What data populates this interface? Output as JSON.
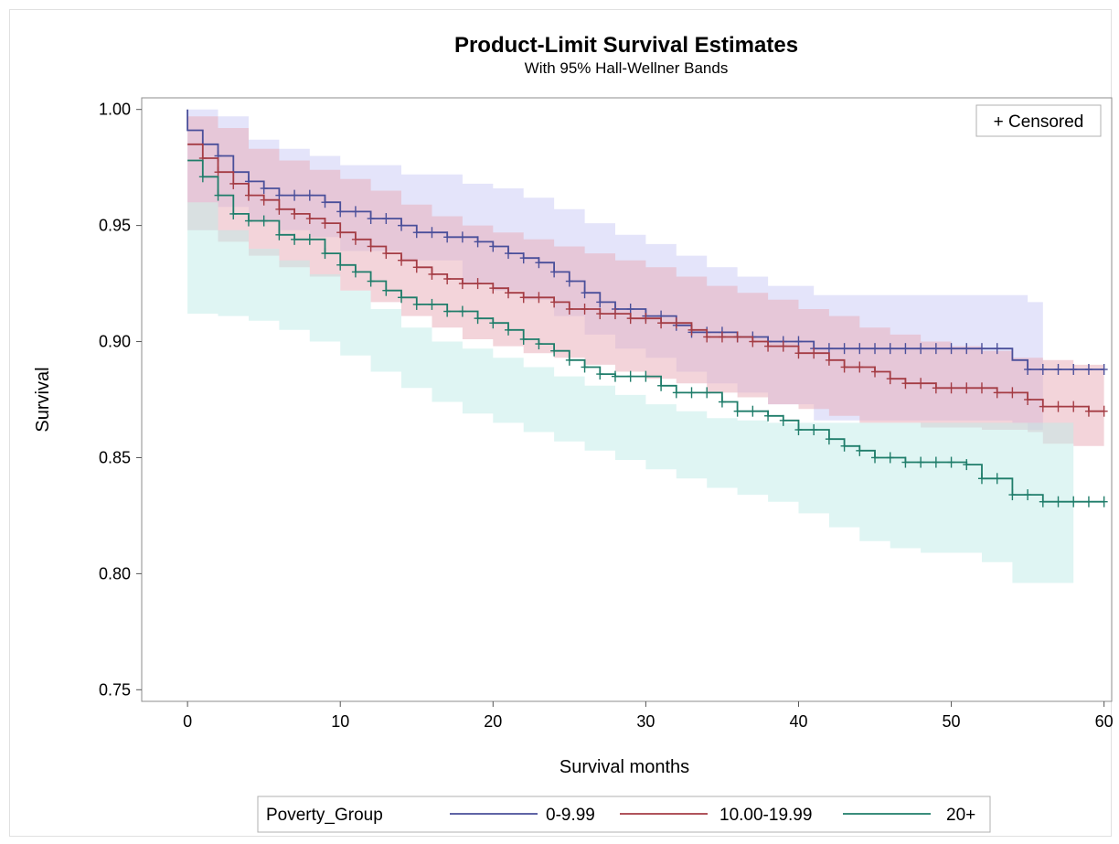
{
  "chart_data": {
    "type": "line",
    "title": "Product-Limit Survival Estimates",
    "subtitle": "With 95% Hall-Wellner Bands",
    "xlabel": "Survival months",
    "ylabel": "Survival",
    "xlim": [
      -3,
      60.5
    ],
    "ylim": [
      0.745,
      1.005
    ],
    "xticks": [
      0,
      10,
      20,
      30,
      40,
      50,
      60
    ],
    "yticks": [
      0.75,
      0.8,
      0.85,
      0.9,
      0.95,
      1.0
    ],
    "yticklabels": [
      "0.75",
      "0.80",
      "0.85",
      "0.90",
      "0.95",
      "1.00"
    ],
    "grid": false,
    "legend": {
      "title": "Poverty_Group",
      "placement": "bottom"
    },
    "inset_legend": {
      "label": "+ Censored",
      "placement": "top-right"
    },
    "series": [
      {
        "name": "0-9.99",
        "color": "#4a4f9a",
        "band_color": "#c9c9f5",
        "steps": [
          [
            0,
            1.0
          ],
          [
            0,
            0.991
          ],
          [
            1,
            0.985
          ],
          [
            2,
            0.98
          ],
          [
            3,
            0.973
          ],
          [
            4,
            0.969
          ],
          [
            5,
            0.966
          ],
          [
            6,
            0.963
          ],
          [
            9,
            0.96
          ],
          [
            10,
            0.956
          ],
          [
            12,
            0.953
          ],
          [
            14,
            0.95
          ],
          [
            15,
            0.947
          ],
          [
            17,
            0.945
          ],
          [
            19,
            0.943
          ],
          [
            20,
            0.941
          ],
          [
            21,
            0.938
          ],
          [
            22,
            0.936
          ],
          [
            23,
            0.934
          ],
          [
            24,
            0.93
          ],
          [
            25,
            0.926
          ],
          [
            26,
            0.921
          ],
          [
            27,
            0.917
          ],
          [
            28,
            0.914
          ],
          [
            30,
            0.911
          ],
          [
            32,
            0.907
          ],
          [
            33,
            0.904
          ],
          [
            36,
            0.902
          ],
          [
            38,
            0.9
          ],
          [
            41,
            0.897
          ],
          [
            54,
            0.892
          ],
          [
            55,
            0.888
          ],
          [
            60,
            0.888
          ]
        ],
        "band_upper": [
          [
            0,
            1.0
          ],
          [
            2,
            0.997
          ],
          [
            4,
            0.987
          ],
          [
            6,
            0.983
          ],
          [
            8,
            0.98
          ],
          [
            10,
            0.976
          ],
          [
            14,
            0.972
          ],
          [
            18,
            0.968
          ],
          [
            20,
            0.966
          ],
          [
            22,
            0.962
          ],
          [
            24,
            0.957
          ],
          [
            26,
            0.951
          ],
          [
            28,
            0.946
          ],
          [
            30,
            0.942
          ],
          [
            32,
            0.937
          ],
          [
            34,
            0.932
          ],
          [
            36,
            0.928
          ],
          [
            38,
            0.924
          ],
          [
            41,
            0.92
          ],
          [
            54,
            0.92
          ],
          [
            55,
            0.917
          ]
        ],
        "band_lower": [
          [
            0,
            0.96
          ],
          [
            2,
            0.958
          ],
          [
            4,
            0.952
          ],
          [
            6,
            0.948
          ],
          [
            8,
            0.945
          ],
          [
            10,
            0.939
          ],
          [
            14,
            0.935
          ],
          [
            18,
            0.925
          ],
          [
            20,
            0.922
          ],
          [
            22,
            0.918
          ],
          [
            24,
            0.911
          ],
          [
            26,
            0.903
          ],
          [
            28,
            0.897
          ],
          [
            30,
            0.893
          ],
          [
            32,
            0.887
          ],
          [
            34,
            0.882
          ],
          [
            36,
            0.878
          ],
          [
            38,
            0.873
          ],
          [
            41,
            0.866
          ],
          [
            54,
            0.865
          ],
          [
            55,
            0.862
          ]
        ],
        "censored": [
          1,
          2,
          3,
          4,
          5,
          6,
          7,
          8,
          9,
          10,
          11,
          12,
          13,
          14,
          15,
          16,
          17,
          18,
          19,
          20,
          21,
          22,
          23,
          24,
          25,
          26,
          27,
          28,
          29,
          30,
          31,
          32,
          33,
          34,
          35,
          36,
          37,
          38,
          39,
          40,
          41,
          42,
          43,
          44,
          45,
          46,
          47,
          48,
          49,
          50,
          51,
          52,
          53,
          55,
          56,
          57,
          58,
          59,
          60
        ]
      },
      {
        "name": "10.00-19.99",
        "color": "#a43c44",
        "band_color": "#e8a9b6",
        "steps": [
          [
            0,
            0.985
          ],
          [
            1,
            0.979
          ],
          [
            2,
            0.973
          ],
          [
            3,
            0.968
          ],
          [
            4,
            0.963
          ],
          [
            5,
            0.961
          ],
          [
            6,
            0.957
          ],
          [
            7,
            0.955
          ],
          [
            8,
            0.953
          ],
          [
            9,
            0.951
          ],
          [
            10,
            0.947
          ],
          [
            11,
            0.944
          ],
          [
            12,
            0.941
          ],
          [
            13,
            0.938
          ],
          [
            14,
            0.935
          ],
          [
            15,
            0.932
          ],
          [
            16,
            0.929
          ],
          [
            17,
            0.927
          ],
          [
            18,
            0.925
          ],
          [
            20,
            0.923
          ],
          [
            21,
            0.921
          ],
          [
            22,
            0.919
          ],
          [
            24,
            0.917
          ],
          [
            25,
            0.914
          ],
          [
            27,
            0.912
          ],
          [
            29,
            0.91
          ],
          [
            31,
            0.908
          ],
          [
            33,
            0.905
          ],
          [
            34,
            0.902
          ],
          [
            37,
            0.9
          ],
          [
            38,
            0.898
          ],
          [
            40,
            0.895
          ],
          [
            42,
            0.892
          ],
          [
            43,
            0.889
          ],
          [
            45,
            0.887
          ],
          [
            46,
            0.884
          ],
          [
            47,
            0.882
          ],
          [
            49,
            0.88
          ],
          [
            53,
            0.878
          ],
          [
            55,
            0.875
          ],
          [
            56,
            0.872
          ],
          [
            59,
            0.87
          ],
          [
            60,
            0.87
          ]
        ],
        "band_upper": [
          [
            0,
            0.997
          ],
          [
            2,
            0.992
          ],
          [
            4,
            0.983
          ],
          [
            6,
            0.978
          ],
          [
            8,
            0.974
          ],
          [
            10,
            0.97
          ],
          [
            12,
            0.965
          ],
          [
            14,
            0.959
          ],
          [
            16,
            0.954
          ],
          [
            18,
            0.95
          ],
          [
            20,
            0.947
          ],
          [
            22,
            0.944
          ],
          [
            24,
            0.941
          ],
          [
            26,
            0.938
          ],
          [
            28,
            0.935
          ],
          [
            30,
            0.932
          ],
          [
            32,
            0.928
          ],
          [
            34,
            0.924
          ],
          [
            36,
            0.921
          ],
          [
            38,
            0.918
          ],
          [
            40,
            0.914
          ],
          [
            42,
            0.911
          ],
          [
            44,
            0.906
          ],
          [
            46,
            0.903
          ],
          [
            48,
            0.9
          ],
          [
            50,
            0.898
          ],
          [
            52,
            0.896
          ],
          [
            54,
            0.893
          ],
          [
            56,
            0.892
          ],
          [
            58,
            0.89
          ],
          [
            59,
            0.89
          ]
        ],
        "band_lower": [
          [
            0,
            0.948
          ],
          [
            2,
            0.943
          ],
          [
            4,
            0.937
          ],
          [
            6,
            0.932
          ],
          [
            8,
            0.928
          ],
          [
            10,
            0.922
          ],
          [
            12,
            0.917
          ],
          [
            14,
            0.911
          ],
          [
            16,
            0.906
          ],
          [
            18,
            0.901
          ],
          [
            20,
            0.898
          ],
          [
            22,
            0.895
          ],
          [
            24,
            0.893
          ],
          [
            26,
            0.89
          ],
          [
            28,
            0.887
          ],
          [
            30,
            0.884
          ],
          [
            32,
            0.882
          ],
          [
            34,
            0.878
          ],
          [
            36,
            0.876
          ],
          [
            38,
            0.873
          ],
          [
            40,
            0.871
          ],
          [
            42,
            0.868
          ],
          [
            44,
            0.865
          ],
          [
            48,
            0.863
          ],
          [
            52,
            0.862
          ],
          [
            55,
            0.861
          ],
          [
            56,
            0.856
          ],
          [
            58,
            0.855
          ],
          [
            59,
            0.855
          ]
        ],
        "censored": [
          1,
          2,
          3,
          4,
          5,
          6,
          7,
          8,
          9,
          10,
          11,
          12,
          13,
          14,
          15,
          16,
          17,
          18,
          19,
          20,
          21,
          22,
          23,
          24,
          25,
          26,
          27,
          28,
          29,
          30,
          31,
          32,
          33,
          34,
          35,
          36,
          37,
          38,
          39,
          40,
          41,
          42,
          43,
          44,
          45,
          46,
          47,
          48,
          49,
          50,
          51,
          52,
          53,
          54,
          55,
          56,
          57,
          58,
          59,
          60
        ]
      },
      {
        "name": "20+",
        "color": "#1f7d6a",
        "band_color": "#bfece8",
        "steps": [
          [
            0,
            0.978
          ],
          [
            1,
            0.971
          ],
          [
            2,
            0.963
          ],
          [
            3,
            0.955
          ],
          [
            4,
            0.952
          ],
          [
            6,
            0.946
          ],
          [
            7,
            0.944
          ],
          [
            9,
            0.938
          ],
          [
            10,
            0.933
          ],
          [
            11,
            0.93
          ],
          [
            12,
            0.926
          ],
          [
            13,
            0.922
          ],
          [
            14,
            0.919
          ],
          [
            15,
            0.916
          ],
          [
            17,
            0.913
          ],
          [
            19,
            0.91
          ],
          [
            20,
            0.908
          ],
          [
            21,
            0.905
          ],
          [
            22,
            0.901
          ],
          [
            23,
            0.899
          ],
          [
            24,
            0.896
          ],
          [
            25,
            0.892
          ],
          [
            26,
            0.889
          ],
          [
            27,
            0.886
          ],
          [
            28,
            0.885
          ],
          [
            31,
            0.881
          ],
          [
            32,
            0.878
          ],
          [
            35,
            0.874
          ],
          [
            36,
            0.87
          ],
          [
            38,
            0.868
          ],
          [
            39,
            0.866
          ],
          [
            40,
            0.862
          ],
          [
            42,
            0.858
          ],
          [
            43,
            0.855
          ],
          [
            44,
            0.853
          ],
          [
            45,
            0.85
          ],
          [
            47,
            0.848
          ],
          [
            51,
            0.847
          ],
          [
            52,
            0.841
          ],
          [
            54,
            0.834
          ],
          [
            56,
            0.831
          ],
          [
            60,
            0.831
          ]
        ],
        "band_upper": [
          [
            0,
            0.96
          ],
          [
            2,
            0.948
          ],
          [
            4,
            0.94
          ],
          [
            6,
            0.935
          ],
          [
            8,
            0.929
          ],
          [
            10,
            0.922
          ],
          [
            12,
            0.914
          ],
          [
            14,
            0.906
          ],
          [
            16,
            0.9
          ],
          [
            18,
            0.897
          ],
          [
            20,
            0.893
          ],
          [
            22,
            0.889
          ],
          [
            24,
            0.885
          ],
          [
            26,
            0.881
          ],
          [
            28,
            0.877
          ],
          [
            30,
            0.873
          ],
          [
            32,
            0.87
          ],
          [
            34,
            0.867
          ],
          [
            36,
            0.866
          ],
          [
            38,
            0.865
          ],
          [
            40,
            0.865
          ],
          [
            57,
            0.865
          ]
        ],
        "band_lower": [
          [
            0,
            0.912
          ],
          [
            2,
            0.911
          ],
          [
            4,
            0.909
          ],
          [
            6,
            0.905
          ],
          [
            8,
            0.9
          ],
          [
            10,
            0.894
          ],
          [
            12,
            0.887
          ],
          [
            14,
            0.88
          ],
          [
            16,
            0.874
          ],
          [
            18,
            0.869
          ],
          [
            20,
            0.865
          ],
          [
            22,
            0.861
          ],
          [
            24,
            0.857
          ],
          [
            26,
            0.853
          ],
          [
            28,
            0.849
          ],
          [
            30,
            0.845
          ],
          [
            32,
            0.841
          ],
          [
            34,
            0.837
          ],
          [
            36,
            0.834
          ],
          [
            38,
            0.831
          ],
          [
            40,
            0.826
          ],
          [
            42,
            0.82
          ],
          [
            44,
            0.814
          ],
          [
            46,
            0.811
          ],
          [
            48,
            0.809
          ],
          [
            50,
            0.809
          ],
          [
            52,
            0.805
          ],
          [
            54,
            0.796
          ],
          [
            57,
            0.796
          ]
        ],
        "censored": [
          1,
          2,
          3,
          4,
          5,
          6,
          7,
          8,
          9,
          10,
          11,
          12,
          13,
          14,
          15,
          16,
          17,
          18,
          19,
          20,
          21,
          22,
          23,
          24,
          25,
          26,
          27,
          28,
          29,
          30,
          31,
          32,
          33,
          34,
          35,
          36,
          37,
          38,
          39,
          40,
          41,
          42,
          43,
          44,
          45,
          46,
          47,
          48,
          49,
          50,
          51,
          52,
          53,
          54,
          55,
          56,
          57,
          58,
          59,
          60
        ]
      }
    ]
  }
}
